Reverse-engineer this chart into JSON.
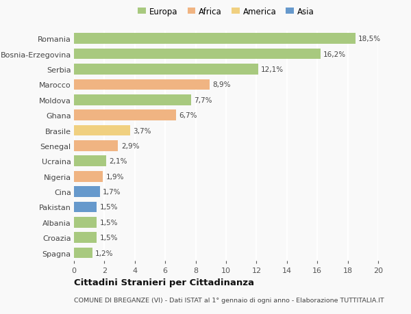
{
  "categories": [
    "Romania",
    "Bosnia-Erzegovina",
    "Serbia",
    "Marocco",
    "Moldova",
    "Ghana",
    "Brasile",
    "Senegal",
    "Ucraina",
    "Nigeria",
    "Cina",
    "Pakistan",
    "Albania",
    "Croazia",
    "Spagna"
  ],
  "values": [
    18.5,
    16.2,
    12.1,
    8.9,
    7.7,
    6.7,
    3.7,
    2.9,
    2.1,
    1.9,
    1.7,
    1.5,
    1.5,
    1.5,
    1.2
  ],
  "labels": [
    "18,5%",
    "16,2%",
    "12,1%",
    "8,9%",
    "7,7%",
    "6,7%",
    "3,7%",
    "2,9%",
    "2,1%",
    "1,9%",
    "1,7%",
    "1,5%",
    "1,5%",
    "1,5%",
    "1,2%"
  ],
  "continents": [
    "Europa",
    "Europa",
    "Europa",
    "Africa",
    "Europa",
    "Africa",
    "America",
    "Africa",
    "Europa",
    "Africa",
    "Asia",
    "Asia",
    "Europa",
    "Europa",
    "Europa"
  ],
  "colors": {
    "Europa": "#a8c97f",
    "Africa": "#f0b482",
    "America": "#f0d080",
    "Asia": "#6699cc"
  },
  "xlim": [
    0,
    20
  ],
  "xticks": [
    0,
    2,
    4,
    6,
    8,
    10,
    12,
    14,
    16,
    18,
    20
  ],
  "title": "Cittadini Stranieri per Cittadinanza",
  "subtitle": "COMUNE DI BREGANZE (VI) - Dati ISTAT al 1° gennaio di ogni anno - Elaborazione TUTTITALIA.IT",
  "background_color": "#f9f9f9",
  "grid_color": "#ffffff",
  "bar_height": 0.7
}
